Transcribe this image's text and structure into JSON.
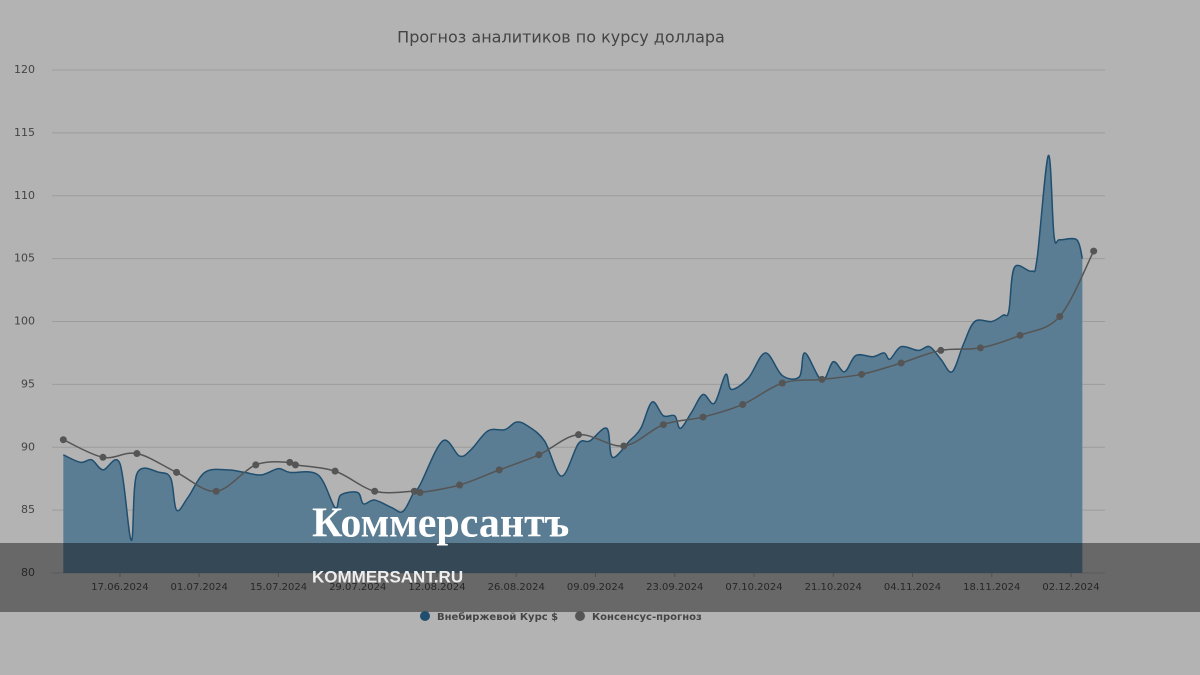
{
  "chart_data": {
    "type": "area-line",
    "title": "Прогноз аналитиков по курсу доллара",
    "xlim": [
      "2024-06-05",
      "2024-12-08"
    ],
    "xticks": [
      {
        "value": "2024-06-17",
        "label": "17.06.2024"
      },
      {
        "value": "2024-07-01",
        "label": "01.07.2024"
      },
      {
        "value": "2024-07-15",
        "label": "15.07.2024"
      },
      {
        "value": "2024-07-29",
        "label": "29.07.2024"
      },
      {
        "value": "2024-08-12",
        "label": "12.08.2024"
      },
      {
        "value": "2024-08-26",
        "label": "26.08.2024"
      },
      {
        "value": "2024-09-09",
        "label": "09.09.2024"
      },
      {
        "value": "2024-09-23",
        "label": "23.09.2024"
      },
      {
        "value": "2024-10-07",
        "label": "07.10.2024"
      },
      {
        "value": "2024-10-21",
        "label": "21.10.2024"
      },
      {
        "value": "2024-11-04",
        "label": "04.11.2024"
      },
      {
        "value": "2024-11-18",
        "label": "18.11.2024"
      },
      {
        "value": "2024-12-02",
        "label": "02.12.2024"
      }
    ],
    "ylim": [
      80,
      120
    ],
    "yticks": [
      80,
      85,
      90,
      95,
      100,
      105,
      110,
      115,
      120
    ],
    "grid": true,
    "series": [
      {
        "name": "Внебиржевой Курс $",
        "color": "#1f4e6e",
        "fill": "#5a7d93",
        "kind": "area",
        "x": [
          "2024-06-07",
          "2024-06-10",
          "2024-06-12",
          "2024-06-14",
          "2024-06-17",
          "2024-06-19",
          "2024-06-20",
          "2024-06-24",
          "2024-06-26",
          "2024-06-27",
          "2024-06-29",
          "2024-07-02",
          "2024-07-06",
          "2024-07-09",
          "2024-07-12",
          "2024-07-15",
          "2024-07-17",
          "2024-07-22",
          "2024-07-25",
          "2024-07-26",
          "2024-07-29",
          "2024-07-30",
          "2024-08-01",
          "2024-08-04",
          "2024-08-06",
          "2024-08-08",
          "2024-08-09",
          "2024-08-13",
          "2024-08-16",
          "2024-08-18",
          "2024-08-21",
          "2024-08-24",
          "2024-08-26",
          "2024-08-28",
          "2024-08-31",
          "2024-09-03",
          "2024-09-06",
          "2024-09-08",
          "2024-09-11",
          "2024-09-12",
          "2024-09-15",
          "2024-09-17",
          "2024-09-19",
          "2024-09-21",
          "2024-09-23",
          "2024-09-24",
          "2024-09-26",
          "2024-09-28",
          "2024-09-30",
          "2024-10-02",
          "2024-10-03",
          "2024-10-06",
          "2024-10-09",
          "2024-10-12",
          "2024-10-15",
          "2024-10-16",
          "2024-10-19",
          "2024-10-21",
          "2024-10-23",
          "2024-10-25",
          "2024-10-28",
          "2024-10-30",
          "2024-10-31",
          "2024-11-02",
          "2024-11-05",
          "2024-11-07",
          "2024-11-09",
          "2024-11-11",
          "2024-11-13",
          "2024-11-15",
          "2024-11-18",
          "2024-11-20",
          "2024-11-21",
          "2024-11-22",
          "2024-11-25",
          "2024-11-26",
          "2024-11-28",
          "2024-11-29",
          "2024-11-30",
          "2024-12-03",
          "2024-12-04"
        ],
        "values": [
          89.4,
          88.8,
          89.0,
          88.2,
          88.7,
          82.6,
          87.9,
          88.0,
          87.5,
          85.0,
          86.0,
          88.0,
          88.2,
          88.0,
          87.8,
          88.3,
          88.0,
          87.8,
          85.2,
          86.2,
          86.4,
          85.5,
          85.8,
          85.2,
          84.9,
          86.5,
          87.0,
          90.5,
          89.3,
          89.8,
          91.3,
          91.4,
          92.0,
          91.7,
          90.5,
          87.7,
          90.3,
          90.5,
          91.5,
          89.2,
          90.5,
          91.5,
          93.6,
          92.5,
          92.5,
          91.5,
          92.8,
          94.2,
          93.5,
          95.8,
          94.6,
          95.5,
          97.5,
          95.7,
          95.6,
          97.5,
          95.3,
          96.8,
          96.0,
          97.3,
          97.2,
          97.5,
          97.0,
          98.0,
          97.7,
          98.0,
          97.0,
          96.0,
          98.2,
          100.0,
          100.0,
          100.5,
          100.8,
          104.3,
          104.0,
          105.0,
          113.2,
          106.8,
          106.5,
          106.5,
          105.0
        ]
      },
      {
        "name": "Консенсус-прогноз",
        "color": "#555555",
        "kind": "line",
        "x": [
          "2024-06-07",
          "2024-06-14",
          "2024-06-20",
          "2024-06-27",
          "2024-07-04",
          "2024-07-11",
          "2024-07-17",
          "2024-07-18",
          "2024-07-25",
          "2024-08-01",
          "2024-08-08",
          "2024-08-09",
          "2024-08-16",
          "2024-08-23",
          "2024-08-30",
          "2024-09-06",
          "2024-09-14",
          "2024-09-21",
          "2024-09-28",
          "2024-10-05",
          "2024-10-12",
          "2024-10-19",
          "2024-10-26",
          "2024-11-02",
          "2024-11-09",
          "2024-11-16",
          "2024-11-23",
          "2024-11-30",
          "2024-12-06"
        ],
        "values": [
          90.6,
          89.2,
          89.5,
          88.0,
          86.5,
          88.6,
          88.8,
          88.6,
          88.1,
          86.5,
          86.5,
          86.4,
          87.0,
          88.2,
          89.4,
          91.0,
          90.1,
          91.8,
          92.4,
          93.4,
          95.1,
          95.4,
          95.8,
          96.7,
          97.7,
          97.9,
          98.9,
          100.4,
          105.6
        ]
      }
    ]
  },
  "watermark": {
    "logo": "Коммерсантъ",
    "site": "KOMMERSANT.RU"
  }
}
